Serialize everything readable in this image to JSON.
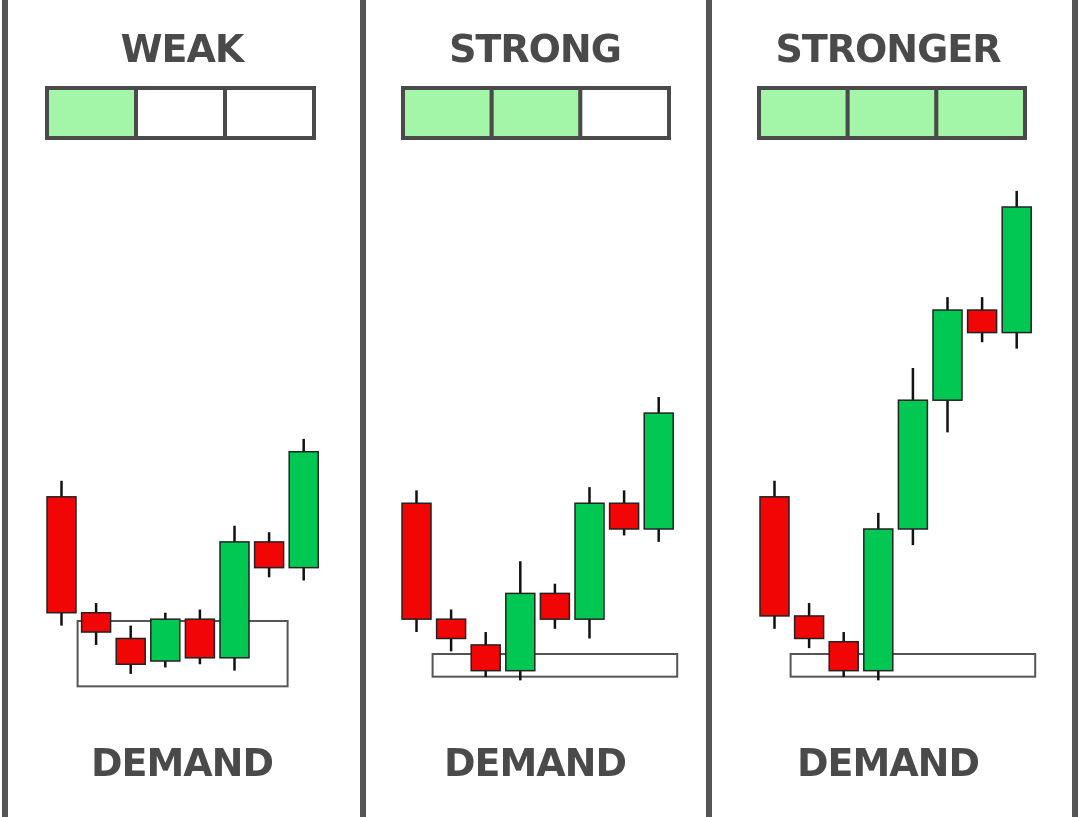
{
  "colors": {
    "bullish": "#00c853",
    "bearish": "#f20505",
    "meter_filled": "#a3f5a8",
    "meter_empty": "#ffffff",
    "outline": "#4a4a4a",
    "text": "#4a4a4a",
    "divider": "#555555",
    "zone_border": "#555555"
  },
  "panels": [
    {
      "title": "WEAK",
      "footer": "DEMAND",
      "strength": {
        "filled": 1,
        "total": 3
      },
      "candles": [
        {
          "color": "bearish",
          "open": 6.0,
          "close": 2.4,
          "high": 6.5,
          "low": 2.0
        },
        {
          "color": "bearish",
          "open": 2.4,
          "close": 1.8,
          "high": 2.7,
          "low": 1.4
        },
        {
          "color": "bearish",
          "open": 1.6,
          "close": 0.8,
          "high": 2.0,
          "low": 0.5
        },
        {
          "color": "bullish",
          "open": 0.9,
          "close": 2.2,
          "high": 2.4,
          "low": 0.7
        },
        {
          "color": "bearish",
          "open": 2.2,
          "close": 1.0,
          "high": 2.5,
          "low": 0.8
        },
        {
          "color": "bullish",
          "open": 1.0,
          "close": 4.6,
          "high": 5.1,
          "low": 0.6
        },
        {
          "color": "bearish",
          "open": 4.6,
          "close": 3.8,
          "high": 4.9,
          "low": 3.5
        },
        {
          "color": "bullish",
          "open": 3.8,
          "close": 7.4,
          "high": 7.8,
          "low": 3.4
        }
      ],
      "zone": {
        "from_candle": 1,
        "to_candle": 6,
        "low": 0.3,
        "high": 2.4
      }
    },
    {
      "title": "STRONG",
      "footer": "DEMAND",
      "strength": {
        "filled": 2,
        "total": 3
      },
      "candles": [
        {
          "color": "bearish",
          "open": 5.8,
          "close": 2.2,
          "high": 6.2,
          "low": 1.8
        },
        {
          "color": "bearish",
          "open": 2.2,
          "close": 1.6,
          "high": 2.5,
          "low": 1.2
        },
        {
          "color": "bearish",
          "open": 1.4,
          "close": 0.6,
          "high": 1.8,
          "low": 0.4
        },
        {
          "color": "bullish",
          "open": 0.6,
          "close": 3.0,
          "high": 4.0,
          "low": 0.3
        },
        {
          "color": "bearish",
          "open": 3.0,
          "close": 2.2,
          "high": 3.3,
          "low": 1.9
        },
        {
          "color": "bullish",
          "open": 2.2,
          "close": 5.8,
          "high": 6.3,
          "low": 1.6
        },
        {
          "color": "bearish",
          "open": 5.8,
          "close": 5.0,
          "high": 6.2,
          "low": 4.8
        },
        {
          "color": "bullish",
          "open": 5.0,
          "close": 8.6,
          "high": 9.1,
          "low": 4.6
        }
      ],
      "zone": {
        "from_candle": 1,
        "to_candle": 7,
        "low": 0.6,
        "high": 1.6
      }
    },
    {
      "title": "STRONGER",
      "footer": "DEMAND",
      "strength": {
        "filled": 3,
        "total": 3
      },
      "candles": [
        {
          "color": "bearish",
          "open": 6.0,
          "close": 2.3,
          "high": 6.5,
          "low": 1.9
        },
        {
          "color": "bearish",
          "open": 2.3,
          "close": 1.6,
          "high": 2.7,
          "low": 1.3
        },
        {
          "color": "bearish",
          "open": 1.5,
          "close": 0.6,
          "high": 1.8,
          "low": 0.4
        },
        {
          "color": "bullish",
          "open": 0.6,
          "close": 5.0,
          "high": 5.5,
          "low": 0.3
        },
        {
          "color": "bullish",
          "open": 5.0,
          "close": 9.0,
          "high": 10.0,
          "low": 4.5
        },
        {
          "color": "bullish",
          "open": 9.0,
          "close": 11.8,
          "high": 12.2,
          "low": 8.0
        },
        {
          "color": "bearish",
          "open": 11.8,
          "close": 11.1,
          "high": 12.2,
          "low": 10.8
        },
        {
          "color": "bullish",
          "open": 11.1,
          "close": 15.0,
          "high": 15.5,
          "low": 10.6
        }
      ],
      "zone": {
        "from_candle": 1,
        "to_candle": 7,
        "low": 0.6,
        "high": 1.6
      }
    }
  ]
}
